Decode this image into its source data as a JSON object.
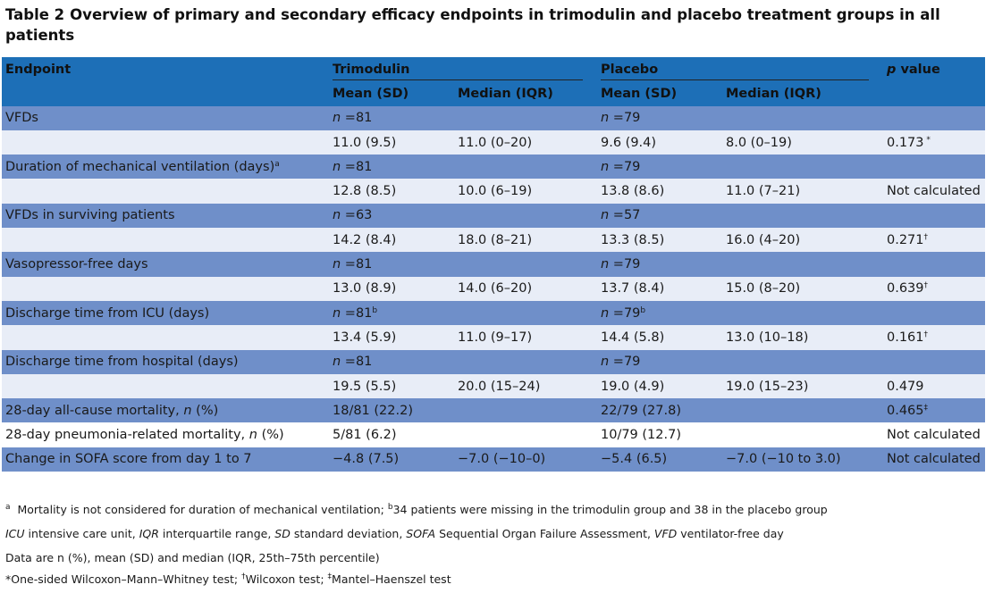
{
  "title": {
    "label": "Table 2",
    "text": "Overview of primary and secondary efficacy endpoints in trimodulin and placebo treatment groups in all patients"
  },
  "header": {
    "endpoint": "Endpoint",
    "trimodulin": "Trimodulin",
    "placebo": "Placebo",
    "p_prefix": "p",
    "p_suffix": " value",
    "mean_sd": "Mean (SD)",
    "median_iqr": "Median (IQR)"
  },
  "rows": [
    {
      "endpoint": "VFDs",
      "endpoint_sup": "",
      "tri_n": "n",
      "tri_nval": " =81",
      "tri_nsup": "",
      "pla_n": "n",
      "pla_nval": " =79",
      "pla_nsup": "",
      "tri_mean": "11.0 (9.5)",
      "tri_median": "11.0 (0–20)",
      "pla_mean": "9.6 (9.4)",
      "pla_median": "8.0 (0–19)",
      "p": "0.173",
      "p_sup": " *"
    },
    {
      "endpoint": "Duration of mechanical ventilation (days)",
      "endpoint_sup": "a",
      "tri_n": "n",
      "tri_nval": " =81",
      "tri_nsup": "",
      "pla_n": "n",
      "pla_nval": " =79",
      "pla_nsup": "",
      "tri_mean": "12.8 (8.5)",
      "tri_median": "10.0 (6–19)",
      "pla_mean": "13.8 (8.6)",
      "pla_median": "11.0 (7–21)",
      "p": "Not calculated",
      "p_sup": ""
    },
    {
      "endpoint": "VFDs in surviving patients",
      "endpoint_sup": "",
      "tri_n": "n",
      "tri_nval": " =63",
      "tri_nsup": "",
      "pla_n": "n",
      "pla_nval": " =57",
      "pla_nsup": "",
      "tri_mean": "14.2 (8.4)",
      "tri_median": "18.0 (8–21)",
      "pla_mean": "13.3 (8.5)",
      "pla_median": "16.0 (4–20)",
      "p": "0.271",
      "p_sup": "†"
    },
    {
      "endpoint": "Vasopressor-free days",
      "endpoint_sup": "",
      "tri_n": "n",
      "tri_nval": " =81",
      "tri_nsup": "",
      "pla_n": "n",
      "pla_nval": " =79",
      "pla_nsup": "",
      "tri_mean": "13.0 (8.9)",
      "tri_median": "14.0 (6–20)",
      "pla_mean": "13.7 (8.4)",
      "pla_median": "15.0 (8–20)",
      "p": "0.639",
      "p_sup": "†"
    },
    {
      "endpoint": "Discharge time from ICU (days)",
      "endpoint_sup": "",
      "tri_n": "n",
      "tri_nval": " =81",
      "tri_nsup": "b",
      "pla_n": "n",
      "pla_nval": " =79",
      "pla_nsup": "b",
      "tri_mean": "13.4 (5.9)",
      "tri_median": "11.0 (9–17)",
      "pla_mean": "14.4 (5.8)",
      "pla_median": "13.0 (10–18)",
      "p": "0.161",
      "p_sup": "†"
    },
    {
      "endpoint": "Discharge time from hospital (days)",
      "endpoint_sup": "",
      "tri_n": "n",
      "tri_nval": " =81",
      "tri_nsup": "",
      "pla_n": "n",
      "pla_nval": " =79",
      "pla_nsup": "",
      "tri_mean": "19.5 (5.5)",
      "tri_median": "20.0 (15–24)",
      "pla_mean": "19.0 (4.9)",
      "pla_median": "19.0 (15–23)",
      "p": "0.479",
      "p_sup": ""
    }
  ],
  "single_rows": [
    {
      "endpoint": "28-day all-cause mortality, ",
      "endpoint_it": "n",
      "endpoint_tail": " (%)",
      "tri": "18/81 (22.2)",
      "tri2": "",
      "pla": "22/79 (27.8)",
      "pla2": "",
      "p": "0.465",
      "p_sup": "‡"
    },
    {
      "endpoint": "28-day pneumonia-related mortality, ",
      "endpoint_it": "n",
      "endpoint_tail": " (%)",
      "tri": "5/81 (6.2)",
      "tri2": "",
      "pla": "10/79 (12.7)",
      "pla2": "",
      "p": "Not calculated",
      "p_sup": ""
    },
    {
      "endpoint": "Change in SOFA score from day 1 to 7",
      "endpoint_it": "",
      "endpoint_tail": "",
      "tri": "−4.8 (7.5)",
      "tri2": "−7.0 (−10–0)",
      "pla": "−5.4 (6.5)",
      "pla2": "−7.0 (−10 to 3.0)",
      "p": "Not calculated",
      "p_sup": ""
    }
  ],
  "footnotes": {
    "a_mark": "a",
    "a_text": "  Mortality is not considered for duration of mechanical ventilation; ",
    "b_mark": "b",
    "b_text": "34 patients were missing in the trimodulin group and 38 in the placebo group",
    "abbrev": [
      {
        "term": "ICU",
        "def": " intensive care unit, "
      },
      {
        "term": "IQR",
        "def": " interquartile range, "
      },
      {
        "term": "SD",
        "def": " standard deviation, "
      },
      {
        "term": "SOFA",
        "def": " Sequential Organ Failure Assessment, "
      },
      {
        "term": "VFD",
        "def": " ventilator-free day"
      }
    ],
    "data_note": "Data are n (%), mean (SD) and median (IQR, 25th–75th percentile)",
    "tests_1": "*One-sided Wilcoxon–Mann–Whitney test; ",
    "dagger": "†",
    "tests_2": "Wilcoxon test; ",
    "ddagger": "‡",
    "tests_3": "Mantel–Haenszel test"
  }
}
